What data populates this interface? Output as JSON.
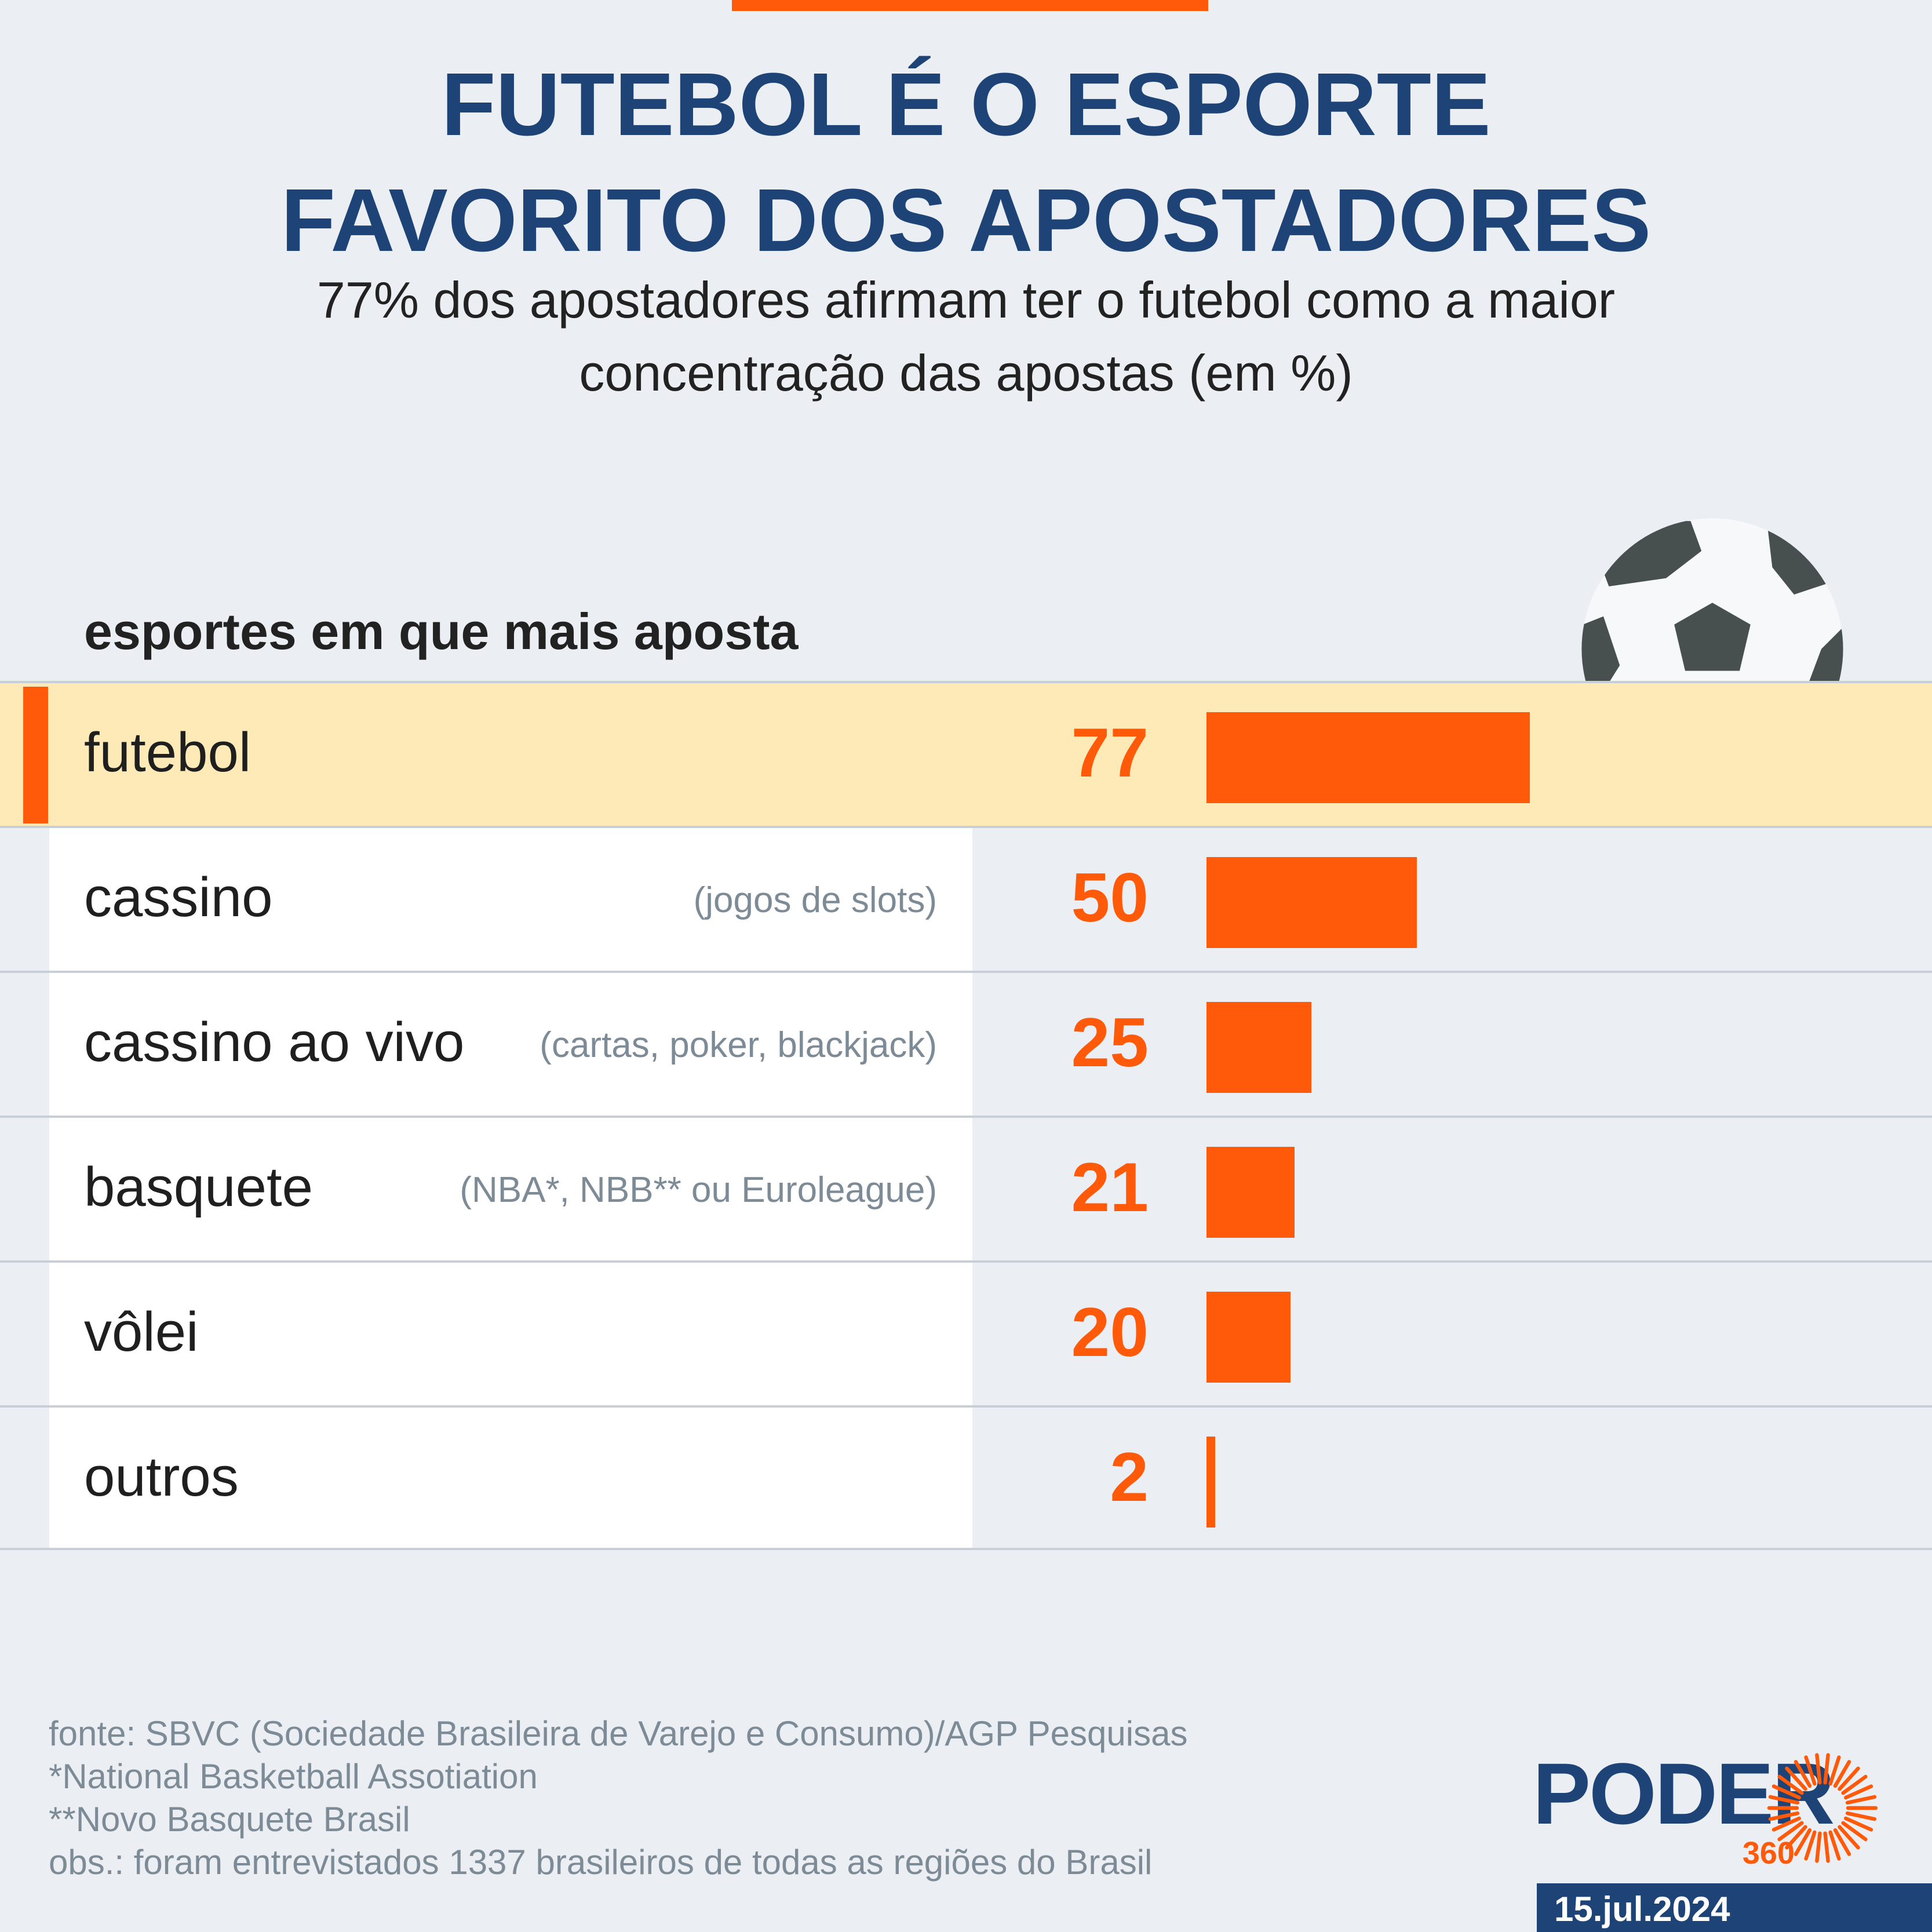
{
  "header": {
    "title_line1": "FUTEBOL É O ESPORTE",
    "title_line2": "FAVORITO DOS APOSTADORES",
    "subtitle_line1": "77% dos apostadores afirmam ter o futebol como a maior",
    "subtitle_line2": "concentração das apostas (em %)"
  },
  "chart_data": {
    "type": "bar",
    "orientation": "horizontal",
    "title": "FUTEBOL É O ESPORTE FAVORITO DOS APOSTADORES",
    "subtitle": "77% dos apostadores afirmam ter o futebol como a maior concentração das apostas (em %)",
    "column_header": "esportes em que mais aposta",
    "categories": [
      "futebol",
      "cassino",
      "cassino ao vivo",
      "basquete",
      "vôlei",
      "outros"
    ],
    "notes": [
      "",
      "(jogos de slots)",
      "(cartas, poker, blackjack)",
      "(NBA*, NBB** ou Euroleague)",
      "",
      ""
    ],
    "values": [
      77,
      50,
      25,
      21,
      20,
      2
    ],
    "value_labels": [
      "77",
      "50",
      "25",
      "21",
      "20",
      "2"
    ],
    "highlighted_index": 0,
    "unit": "%",
    "xlim": [
      0,
      100
    ],
    "colors": {
      "bar": "#ff5a0a",
      "value": "#ff5a0a",
      "highlight_bg": "#feeab6"
    }
  },
  "footer": {
    "source": "fonte: SBVC (Sociedade Brasileira de Varejo e Consumo)/AGP Pesquisas",
    "note1": "*National Basketball Assotiation",
    "note2": "**Novo Basquete Brasil",
    "note3": "obs.: foram entrevistados 1337 brasileiros de todas as regiões do Brasil"
  },
  "branding": {
    "logo_word": "PODER",
    "logo_number": "360",
    "date": "15.jul.2024",
    "colors": {
      "navy": "#1e4377",
      "orange": "#ff5a0a"
    }
  },
  "decor": {
    "icon": "soccer-ball-icon",
    "logo_icon": "sun-burst-icon"
  }
}
